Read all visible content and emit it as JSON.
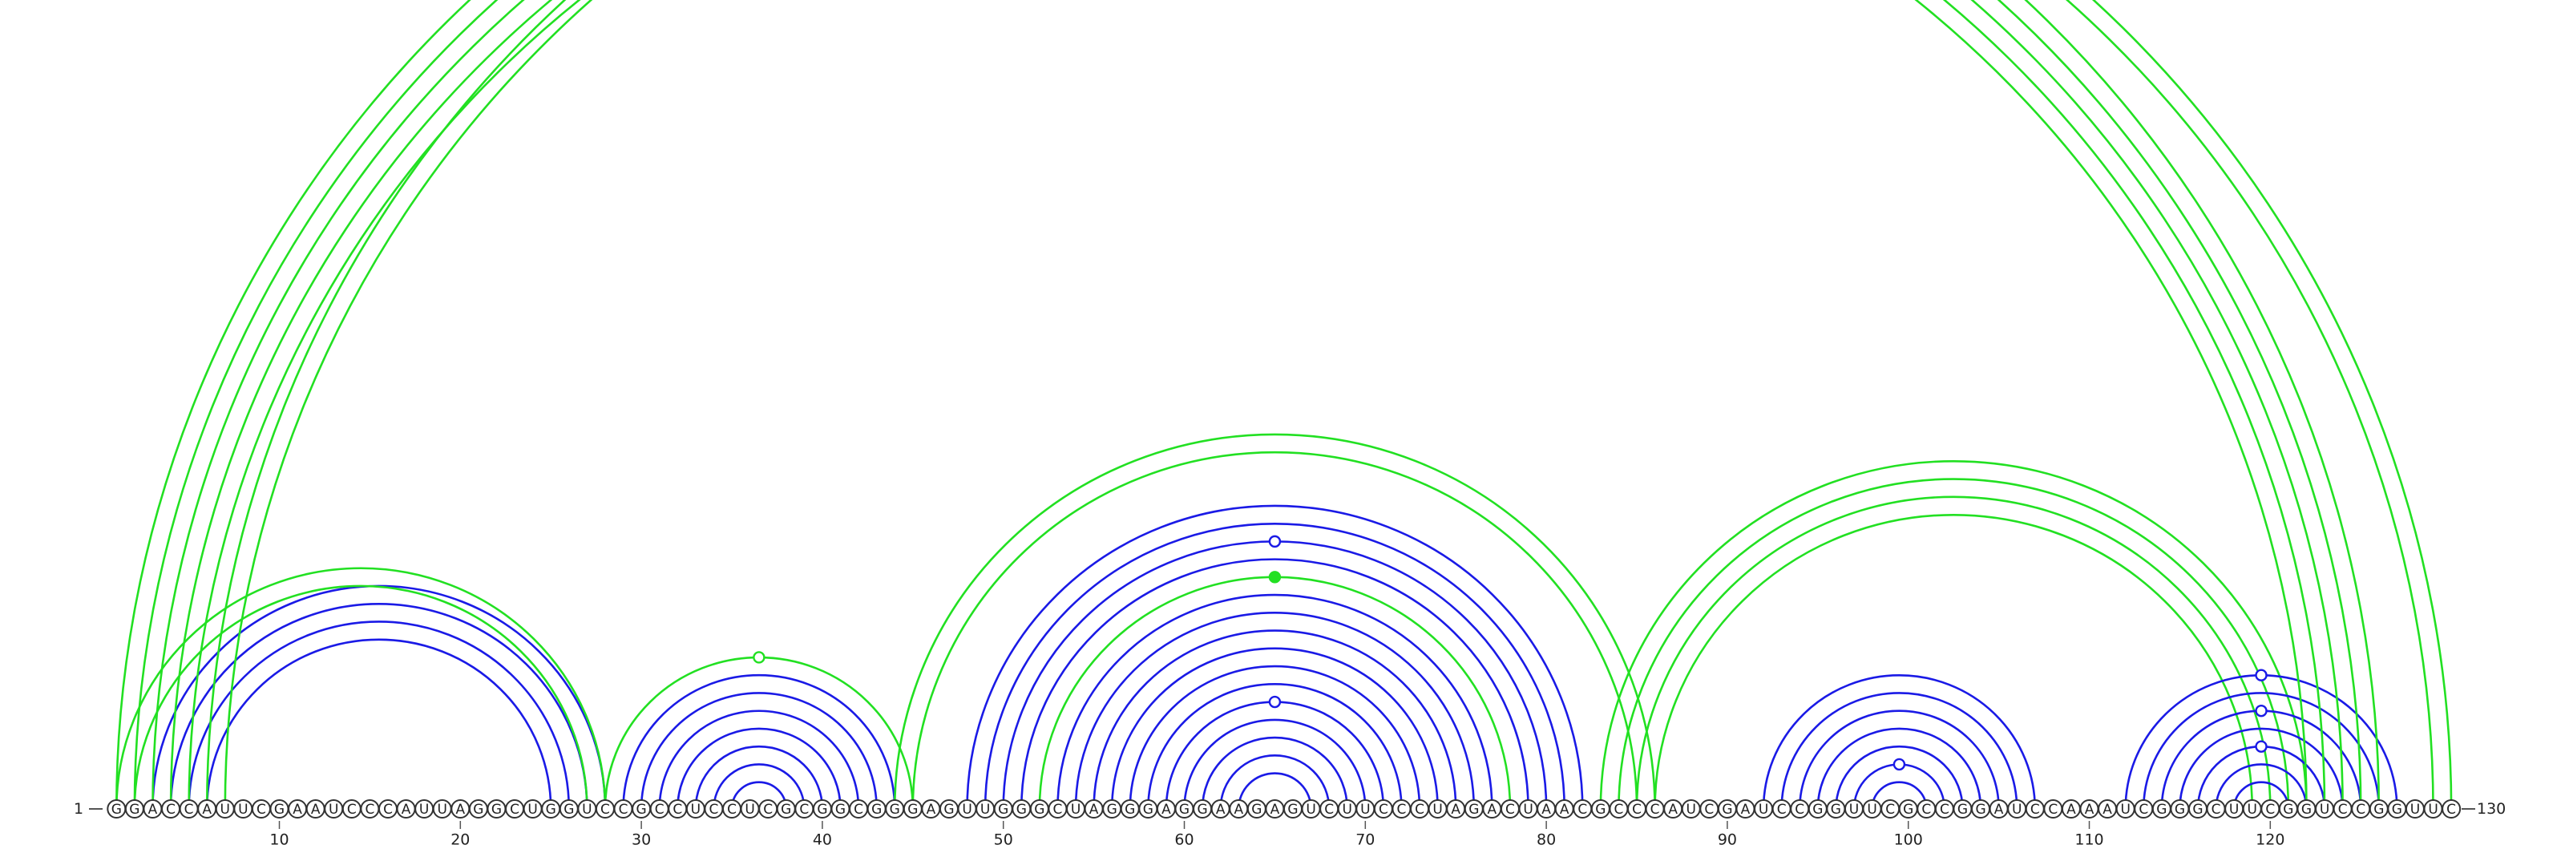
{
  "diagram": {
    "type": "rna-arc-diagram",
    "sequence": "GGACCAUUCGAAUCCCAUUAGGCUGGUCCGCCUCCUCGCGGCGGGAGUUGGGCUAGGGAGGAAGAGUCUUCCCUAGACUAACGCCCAUCGAUCCGGUUCGCCGGAUCCAAAUCGGGCUUCGGUCCGGUUC",
    "start_label": "1",
    "end_label": "130",
    "ticks": [
      10,
      20,
      30,
      40,
      50,
      60,
      70,
      80,
      90,
      100,
      110,
      120
    ],
    "colors": {
      "blue": "#1a1ae6",
      "green": "#22e022"
    },
    "arc_groups": [
      {
        "color": "blue",
        "pairs": [
          [
            3,
            28
          ],
          [
            4,
            27
          ],
          [
            5,
            26
          ],
          [
            6,
            25
          ]
        ]
      },
      {
        "color": "green",
        "pairs": [
          [
            1,
            28
          ],
          [
            2,
            27
          ]
        ]
      },
      {
        "color": "blue",
        "pairs": [
          [
            29,
            44
          ],
          [
            30,
            43
          ],
          [
            31,
            42
          ],
          [
            32,
            41
          ],
          [
            33,
            40
          ],
          [
            34,
            39
          ],
          [
            35,
            38
          ]
        ]
      },
      {
        "color": "green",
        "pairs": [
          [
            28,
            45
          ]
        ]
      },
      {
        "color": "blue",
        "pairs": [
          [
            48,
            82
          ],
          [
            49,
            81
          ],
          [
            50,
            80
          ],
          [
            51,
            79
          ],
          [
            53,
            77
          ],
          [
            54,
            76
          ],
          [
            55,
            75
          ],
          [
            56,
            74
          ],
          [
            57,
            73
          ],
          [
            58,
            72
          ],
          [
            59,
            71
          ],
          [
            60,
            70
          ],
          [
            61,
            69
          ],
          [
            62,
            68
          ],
          [
            63,
            67
          ]
        ]
      },
      {
        "color": "green",
        "pairs": [
          [
            44,
            86
          ],
          [
            45,
            85
          ],
          [
            52,
            78
          ]
        ]
      },
      {
        "color": "green",
        "pairs": [
          [
            83,
            122
          ],
          [
            84,
            121
          ],
          [
            85,
            120
          ],
          [
            86,
            119
          ]
        ]
      },
      {
        "color": "blue",
        "pairs": [
          [
            92,
            107
          ],
          [
            93,
            106
          ],
          [
            94,
            105
          ],
          [
            95,
            104
          ],
          [
            96,
            103
          ],
          [
            97,
            102
          ],
          [
            98,
            101
          ]
        ]
      },
      {
        "color": "blue",
        "pairs": [
          [
            112,
            127
          ],
          [
            113,
            126
          ],
          [
            114,
            125
          ],
          [
            115,
            124
          ],
          [
            116,
            123
          ],
          [
            117,
            122
          ],
          [
            118,
            121
          ]
        ]
      },
      {
        "color": "green",
        "pairs": [
          [
            1,
            126
          ],
          [
            2,
            125
          ],
          [
            3,
            124
          ],
          [
            4,
            123
          ],
          [
            5,
            122
          ]
        ]
      },
      {
        "color": "green",
        "pairs": [
          [
            6,
            130
          ],
          [
            7,
            129
          ]
        ]
      }
    ],
    "markers": [
      {
        "pair": [
          7,
          129
        ],
        "filled": false,
        "color": "green"
      },
      {
        "pair": [
          28,
          45
        ],
        "filled": false,
        "color": "green"
      },
      {
        "pair": [
          50,
          80
        ],
        "filled": false,
        "color": "blue"
      },
      {
        "pair": [
          52,
          78
        ],
        "filled": true,
        "color": "green"
      },
      {
        "pair": [
          59,
          71
        ],
        "filled": false,
        "color": "blue"
      },
      {
        "pair": [
          97,
          102
        ],
        "filled": false,
        "color": "blue"
      },
      {
        "pair": [
          112,
          127
        ],
        "filled": false,
        "color": "blue"
      },
      {
        "pair": [
          114,
          125
        ],
        "filled": false,
        "color": "blue"
      },
      {
        "pair": [
          116,
          123
        ],
        "filled": false,
        "color": "blue"
      }
    ]
  }
}
